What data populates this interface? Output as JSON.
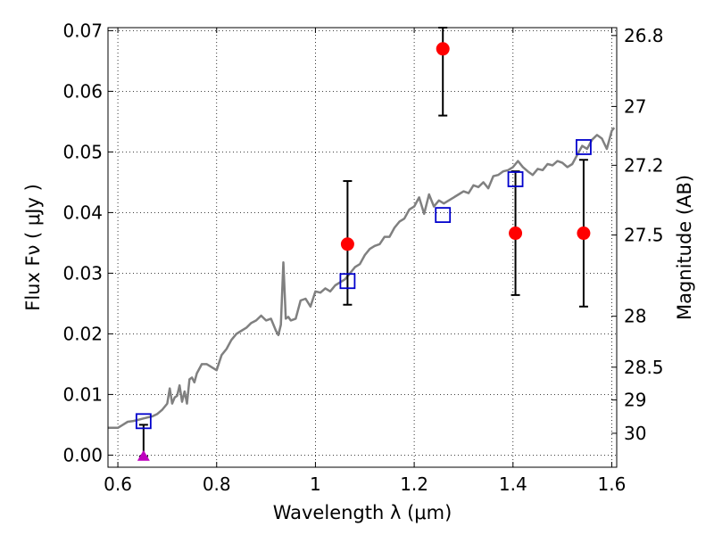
{
  "chart_data": {
    "type": "scatter",
    "xlabel": "Wavelength  λ (μm)",
    "ylabel": "Flux  Fν  ( μJy )",
    "ylabel_right": "Magnitude (AB)",
    "xlim": [
      0.58,
      1.61
    ],
    "ylim": [
      -0.002,
      0.0705
    ],
    "grid": true,
    "x_ticks": [
      0.6,
      0.8,
      1.0,
      1.2,
      1.4,
      1.6
    ],
    "x_tick_labels": [
      "0.6",
      "0.8",
      "1",
      "1.2",
      "1.4",
      "1.6"
    ],
    "y_ticks": [
      0.0,
      0.01,
      0.02,
      0.03,
      0.04,
      0.05,
      0.06,
      0.07
    ],
    "y_tick_labels": [
      "0.00",
      "0.01",
      "0.02",
      "0.03",
      "0.04",
      "0.05",
      "0.06",
      "0.07"
    ],
    "right_ticks": [
      {
        "label": "26.8",
        "flux": 0.0692
      },
      {
        "label": "27",
        "flux": 0.0575
      },
      {
        "label": "27.2",
        "flux": 0.0478
      },
      {
        "label": "27.5",
        "flux": 0.0363
      },
      {
        "label": "28",
        "flux": 0.0229
      },
      {
        "label": "28.5",
        "flux": 0.0145
      },
      {
        "label": "29",
        "flux": 0.0091
      },
      {
        "label": "30",
        "flux": 0.0036
      }
    ],
    "series": [
      {
        "kind": "line",
        "color": "#808080",
        "x": [
          0.58,
          0.6,
          0.61,
          0.62,
          0.63,
          0.64,
          0.65,
          0.66,
          0.67,
          0.68,
          0.69,
          0.7,
          0.705,
          0.71,
          0.715,
          0.72,
          0.725,
          0.73,
          0.735,
          0.74,
          0.745,
          0.75,
          0.755,
          0.76,
          0.77,
          0.78,
          0.79,
          0.8,
          0.81,
          0.82,
          0.83,
          0.84,
          0.85,
          0.86,
          0.87,
          0.88,
          0.89,
          0.9,
          0.91,
          0.92,
          0.925,
          0.93,
          0.935,
          0.94,
          0.945,
          0.95,
          0.96,
          0.97,
          0.98,
          0.99,
          1.0,
          1.01,
          1.02,
          1.03,
          1.04,
          1.05,
          1.06,
          1.07,
          1.08,
          1.09,
          1.1,
          1.11,
          1.12,
          1.13,
          1.14,
          1.15,
          1.16,
          1.17,
          1.18,
          1.19,
          1.2,
          1.21,
          1.22,
          1.23,
          1.24,
          1.25,
          1.26,
          1.27,
          1.28,
          1.29,
          1.3,
          1.31,
          1.32,
          1.33,
          1.34,
          1.35,
          1.36,
          1.37,
          1.38,
          1.39,
          1.4,
          1.41,
          1.42,
          1.43,
          1.44,
          1.45,
          1.46,
          1.47,
          1.48,
          1.49,
          1.5,
          1.51,
          1.52,
          1.53,
          1.54,
          1.55,
          1.56,
          1.57,
          1.58,
          1.59,
          1.6,
          1.605
        ],
        "y": [
          0.0045,
          0.0045,
          0.005,
          0.0055,
          0.0056,
          0.0058,
          0.006,
          0.0062,
          0.0064,
          0.0068,
          0.0075,
          0.0085,
          0.011,
          0.0085,
          0.0095,
          0.0098,
          0.0115,
          0.0088,
          0.0105,
          0.0085,
          0.0125,
          0.0128,
          0.012,
          0.0135,
          0.015,
          0.015,
          0.0145,
          0.014,
          0.0165,
          0.0175,
          0.019,
          0.02,
          0.0205,
          0.021,
          0.0218,
          0.0222,
          0.023,
          0.0222,
          0.0225,
          0.0205,
          0.0198,
          0.0215,
          0.0318,
          0.0225,
          0.0228,
          0.0222,
          0.0225,
          0.0255,
          0.0258,
          0.0245,
          0.027,
          0.0268,
          0.0275,
          0.027,
          0.028,
          0.0285,
          0.029,
          0.03,
          0.031,
          0.0315,
          0.033,
          0.034,
          0.0345,
          0.0348,
          0.036,
          0.036,
          0.0375,
          0.0385,
          0.039,
          0.0405,
          0.041,
          0.0425,
          0.0398,
          0.043,
          0.041,
          0.042,
          0.0415,
          0.042,
          0.0425,
          0.043,
          0.0435,
          0.0432,
          0.0445,
          0.0442,
          0.045,
          0.044,
          0.046,
          0.0462,
          0.0468,
          0.047,
          0.0475,
          0.0485,
          0.0475,
          0.0468,
          0.0462,
          0.0472,
          0.047,
          0.048,
          0.0478,
          0.0485,
          0.0482,
          0.0475,
          0.048,
          0.0495,
          0.051,
          0.0505,
          0.052,
          0.0528,
          0.0522,
          0.0505,
          0.0535,
          0.054
        ]
      },
      {
        "kind": "errorbar",
        "marker": "circle",
        "color": "#ff0000",
        "x": [
          1.065,
          1.258,
          1.405,
          1.543
        ],
        "y": [
          0.0348,
          0.067,
          0.0366,
          0.0366
        ],
        "yerr_low": [
          0.0248,
          0.056,
          0.0264,
          0.0245
        ],
        "yerr_high": [
          0.0452,
          0.0705,
          0.0468,
          0.0487
        ]
      },
      {
        "kind": "errorbar",
        "marker": "triangle",
        "color": "#bf00bf",
        "x": [
          0.652
        ],
        "y": [
          -0.0002
        ],
        "yerr_low": [
          -0.0002
        ],
        "yerr_high": [
          0.005
        ]
      },
      {
        "kind": "scatter",
        "marker": "open-square",
        "color": "#0000cc",
        "x": [
          0.652,
          1.065,
          1.258,
          1.405,
          1.543
        ],
        "y": [
          0.0056,
          0.0287,
          0.0396,
          0.0455,
          0.0508
        ]
      }
    ]
  }
}
